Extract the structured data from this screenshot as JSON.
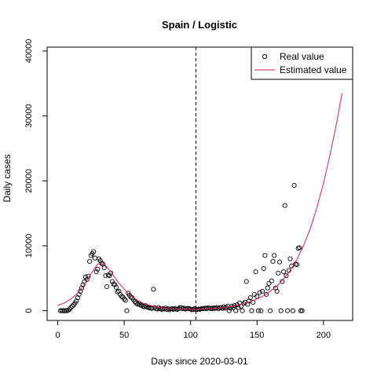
{
  "chart_data": {
    "type": "scatter",
    "title": "Spain / Logistic",
    "xlabel": "Days since 2020-03-01",
    "ylabel": "Daily cases",
    "xlim": [
      -8,
      222
    ],
    "ylim": [
      -1500,
      40600
    ],
    "xticks": [
      0,
      50,
      100,
      150,
      200
    ],
    "yticks": [
      0,
      10000,
      20000,
      30000,
      40000
    ],
    "vline_x": 104,
    "legend": {
      "position": "top-right",
      "entries": [
        {
          "label": "Real value",
          "marker": "open-circle",
          "color": "#000000"
        },
        {
          "label": "Estimated value",
          "marker": "line",
          "color": "#c8245a"
        }
      ]
    },
    "series": [
      {
        "name": "Real value",
        "kind": "points",
        "points": [
          [
            2,
            0
          ],
          [
            3,
            0
          ],
          [
            4,
            0
          ],
          [
            5,
            0
          ],
          [
            6,
            0
          ],
          [
            7,
            0
          ],
          [
            8,
            100
          ],
          [
            9,
            250
          ],
          [
            10,
            500
          ],
          [
            11,
            700
          ],
          [
            12,
            900
          ],
          [
            13,
            1200
          ],
          [
            14,
            1500
          ],
          [
            15,
            2000
          ],
          [
            16,
            2500
          ],
          [
            17,
            3000
          ],
          [
            18,
            3500
          ],
          [
            19,
            4000
          ],
          [
            20,
            4500
          ],
          [
            21,
            5200
          ],
          [
            22,
            4800
          ],
          [
            23,
            5300
          ],
          [
            24,
            7600
          ],
          [
            25,
            8500
          ],
          [
            26,
            8800
          ],
          [
            27,
            9100
          ],
          [
            28,
            8100
          ],
          [
            29,
            6000
          ],
          [
            30,
            6400
          ],
          [
            31,
            8000
          ],
          [
            32,
            7700
          ],
          [
            33,
            7300
          ],
          [
            34,
            7200
          ],
          [
            35,
            6600
          ],
          [
            36,
            5400
          ],
          [
            37,
            3700
          ],
          [
            38,
            5500
          ],
          [
            39,
            5400
          ],
          [
            40,
            5800
          ],
          [
            41,
            4500
          ],
          [
            42,
            4100
          ],
          [
            43,
            4000
          ],
          [
            44,
            3600
          ],
          [
            45,
            2900
          ],
          [
            46,
            3000
          ],
          [
            47,
            2500
          ],
          [
            48,
            2200
          ],
          [
            49,
            2100
          ],
          [
            50,
            1800
          ],
          [
            51,
            1600
          ],
          [
            52,
            0
          ],
          [
            53,
            2700
          ],
          [
            54,
            2400
          ],
          [
            55,
            2100
          ],
          [
            56,
            2000
          ],
          [
            57,
            1700
          ],
          [
            58,
            1400
          ],
          [
            59,
            1200
          ],
          [
            60,
            1000
          ],
          [
            61,
            1100
          ],
          [
            62,
            900
          ],
          [
            63,
            800
          ],
          [
            64,
            700
          ],
          [
            65,
            600
          ],
          [
            66,
            800
          ],
          [
            67,
            600
          ],
          [
            68,
            500
          ],
          [
            69,
            450
          ],
          [
            70,
            400
          ],
          [
            71,
            350
          ],
          [
            72,
            3300
          ],
          [
            73,
            500
          ],
          [
            74,
            300
          ],
          [
            75,
            250
          ],
          [
            76,
            500
          ],
          [
            77,
            300
          ],
          [
            78,
            200
          ],
          [
            79,
            300
          ],
          [
            80,
            250
          ],
          [
            81,
            400
          ],
          [
            82,
            200
          ],
          [
            83,
            300
          ],
          [
            84,
            150
          ],
          [
            85,
            250
          ],
          [
            86,
            300
          ],
          [
            87,
            200
          ],
          [
            88,
            350
          ],
          [
            89,
            250
          ],
          [
            90,
            200
          ],
          [
            91,
            300
          ],
          [
            92,
            500
          ],
          [
            93,
            450
          ],
          [
            94,
            300
          ],
          [
            95,
            400
          ],
          [
            96,
            250
          ],
          [
            97,
            300
          ],
          [
            98,
            350
          ],
          [
            99,
            300
          ],
          [
            100,
            250
          ],
          [
            101,
            150
          ],
          [
            102,
            200
          ],
          [
            103,
            300
          ],
          [
            104,
            150
          ],
          [
            105,
            200
          ],
          [
            106,
            250
          ],
          [
            107,
            200
          ],
          [
            108,
            300
          ],
          [
            109,
            300
          ],
          [
            110,
            350
          ],
          [
            111,
            400
          ],
          [
            112,
            300
          ],
          [
            113,
            450
          ],
          [
            114,
            400
          ],
          [
            115,
            350
          ],
          [
            116,
            300
          ],
          [
            117,
            450
          ],
          [
            118,
            350
          ],
          [
            119,
            400
          ],
          [
            120,
            500
          ],
          [
            121,
            300
          ],
          [
            122,
            450
          ],
          [
            123,
            500
          ],
          [
            124,
            350
          ],
          [
            125,
            600
          ],
          [
            126,
            400
          ],
          [
            127,
            500
          ],
          [
            128,
            700
          ],
          [
            129,
            0
          ],
          [
            130,
            400
          ],
          [
            131,
            700
          ],
          [
            132,
            500
          ],
          [
            133,
            800
          ],
          [
            134,
            0
          ],
          [
            135,
            900
          ],
          [
            136,
            500
          ],
          [
            137,
            1200
          ],
          [
            138,
            700
          ],
          [
            139,
            0
          ],
          [
            140,
            1100
          ],
          [
            141,
            1300
          ],
          [
            142,
            4500
          ],
          [
            143,
            1000
          ],
          [
            144,
            1500
          ],
          [
            145,
            2000
          ],
          [
            146,
            0
          ],
          [
            147,
            1300
          ],
          [
            148,
            2500
          ],
          [
            149,
            6000
          ],
          [
            150,
            2200
          ],
          [
            151,
            0
          ],
          [
            152,
            2800
          ],
          [
            153,
            0
          ],
          [
            154,
            3000
          ],
          [
            155,
            6500
          ],
          [
            156,
            8500
          ],
          [
            157,
            2500
          ],
          [
            158,
            3500
          ],
          [
            159,
            4200
          ],
          [
            160,
            0
          ],
          [
            161,
            4600
          ],
          [
            162,
            7600
          ],
          [
            163,
            8500
          ],
          [
            164,
            3500
          ],
          [
            165,
            3000
          ],
          [
            166,
            5800
          ],
          [
            167,
            7500
          ],
          [
            168,
            0
          ],
          [
            169,
            4500
          ],
          [
            170,
            6000
          ],
          [
            171,
            16200
          ],
          [
            172,
            5400
          ],
          [
            173,
            0
          ],
          [
            174,
            6200
          ],
          [
            175,
            8000
          ],
          [
            176,
            6900
          ],
          [
            177,
            0
          ],
          [
            178,
            19300
          ],
          [
            179,
            7200
          ],
          [
            180,
            7100
          ],
          [
            181,
            9600
          ],
          [
            182,
            9700
          ],
          [
            183,
            0
          ],
          [
            184,
            0
          ]
        ]
      },
      {
        "name": "Estimated value",
        "kind": "line",
        "color": "#c8245a",
        "points": [
          [
            0,
            800
          ],
          [
            5,
            1200
          ],
          [
            10,
            1800
          ],
          [
            15,
            2700
          ],
          [
            20,
            4000
          ],
          [
            25,
            5700
          ],
          [
            30,
            7200
          ],
          [
            35,
            7200
          ],
          [
            40,
            6000
          ],
          [
            45,
            4500
          ],
          [
            50,
            3300
          ],
          [
            55,
            2300
          ],
          [
            60,
            1600
          ],
          [
            65,
            1100
          ],
          [
            70,
            800
          ],
          [
            75,
            550
          ],
          [
            80,
            400
          ],
          [
            85,
            300
          ],
          [
            90,
            250
          ],
          [
            95,
            230
          ],
          [
            100,
            220
          ],
          [
            105,
            230
          ],
          [
            110,
            260
          ],
          [
            115,
            310
          ],
          [
            120,
            380
          ],
          [
            125,
            480
          ],
          [
            130,
            630
          ],
          [
            135,
            820
          ],
          [
            140,
            1050
          ],
          [
            145,
            1400
          ],
          [
            150,
            1800
          ],
          [
            155,
            2300
          ],
          [
            160,
            3000
          ],
          [
            165,
            3800
          ],
          [
            170,
            4900
          ],
          [
            175,
            6200
          ],
          [
            180,
            7900
          ],
          [
            185,
            10000
          ],
          [
            190,
            12600
          ],
          [
            195,
            15800
          ],
          [
            200,
            19600
          ],
          [
            205,
            24000
          ],
          [
            210,
            29000
          ],
          [
            214,
            33500
          ]
        ]
      }
    ]
  }
}
